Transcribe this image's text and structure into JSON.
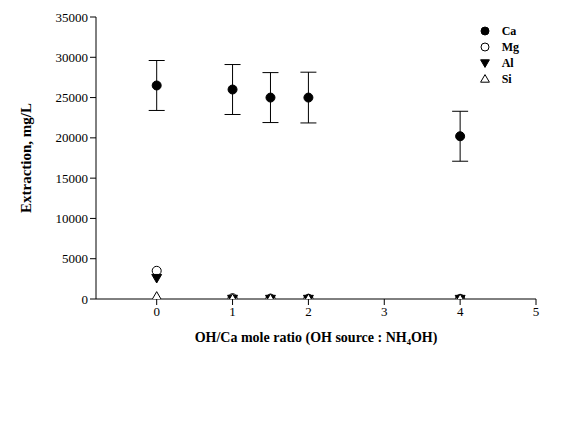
{
  "chart_data": {
    "type": "scatter",
    "xlabel": "OH/Ca mole ratio (OH source : NH₄OH)",
    "ylabel": "Extraction, mg/L",
    "xlim": [
      -0.8,
      5
    ],
    "xticks": [
      0,
      1,
      2,
      3,
      4,
      5
    ],
    "ylim": [
      0,
      35000
    ],
    "yticks": [
      0,
      5000,
      10000,
      15000,
      20000,
      25000,
      30000,
      35000
    ],
    "grid": false,
    "legend": "upper right",
    "series": [
      {
        "name": "Ca",
        "color": "#000000",
        "marker": "circle",
        "x": [
          0,
          1,
          1.5,
          2,
          4
        ],
        "values": [
          26500,
          26000,
          25000,
          25000,
          20200
        ],
        "errors": [
          3100,
          3100,
          3100,
          3150,
          3100
        ]
      },
      {
        "name": "Mg",
        "color": "#000000",
        "marker": "open_circle",
        "x": [
          0,
          1,
          1.5,
          2,
          4
        ],
        "values": [
          3500,
          100,
          50,
          30,
          20
        ]
      },
      {
        "name": "Al",
        "color": "#000000",
        "marker": "triangle_down",
        "x": [
          0,
          1,
          1.5,
          2,
          4
        ],
        "values": [
          2600,
          20,
          10,
          10,
          5
        ]
      },
      {
        "name": "Si",
        "color": "#000000",
        "marker": "open_triangle_up",
        "x": [
          0,
          1,
          1.5,
          2,
          4
        ],
        "values": [
          300,
          30,
          20,
          20,
          10
        ]
      }
    ]
  }
}
